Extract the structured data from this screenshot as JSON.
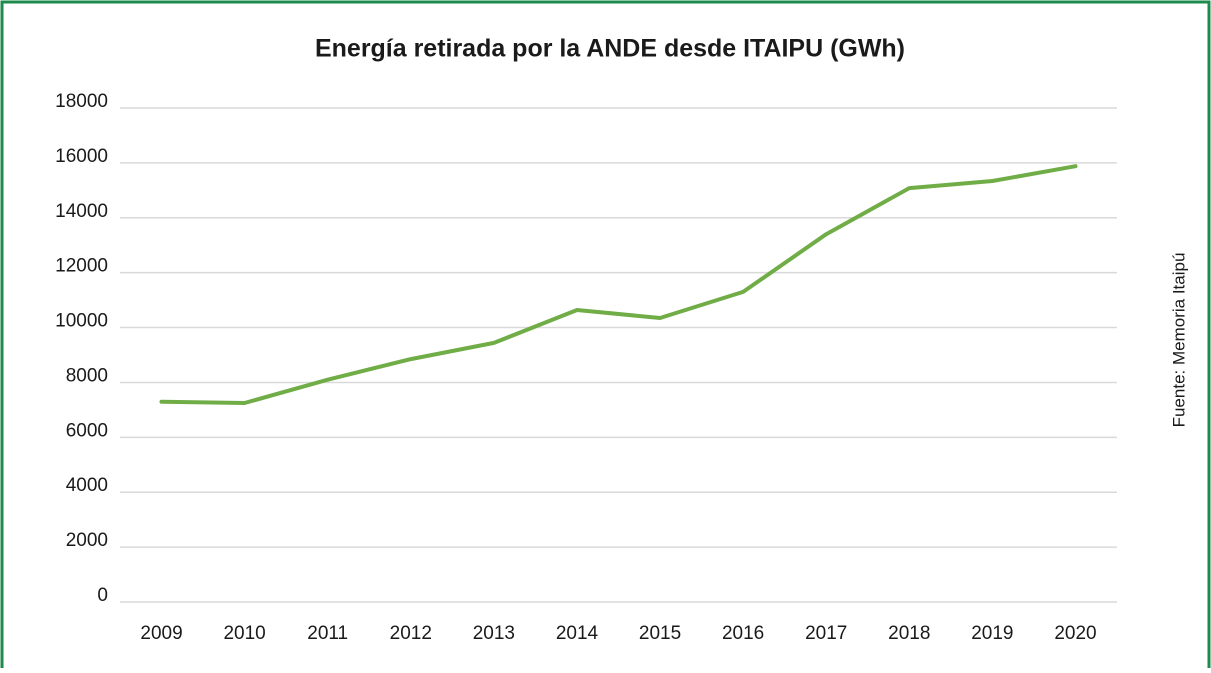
{
  "chart_data": {
    "type": "line",
    "title": "Energía retirada por la ANDE desde ITAIPU (GWh)",
    "source": "Fuente: Memoria Itaipú",
    "categories": [
      "2009",
      "2010",
      "2011",
      "2012",
      "2013",
      "2014",
      "2015",
      "2016",
      "2017",
      "2018",
      "2019",
      "2020"
    ],
    "series": [
      {
        "name": "ANDE",
        "color": "#70ad47",
        "values": [
          7300,
          7250,
          8100,
          8850,
          9440,
          10640,
          10350,
          11300,
          13400,
          15080,
          15340,
          15880
        ]
      }
    ],
    "ylim": [
      0,
      18000
    ],
    "yticks": [
      0,
      2000,
      4000,
      6000,
      8000,
      10000,
      12000,
      14000,
      16000,
      18000
    ],
    "grid": true
  }
}
